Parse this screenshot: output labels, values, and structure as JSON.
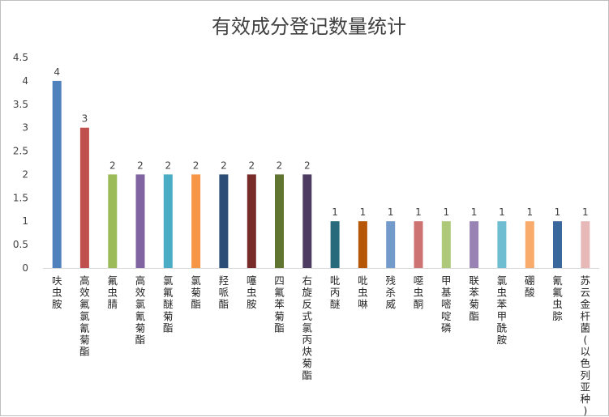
{
  "chart_data": {
    "type": "bar",
    "title": "有效成分登记数量统计",
    "xlabel": "",
    "ylabel": "",
    "ylim": [
      0,
      4.5
    ],
    "yticks": [
      "0",
      "0.5",
      "1",
      "1.5",
      "2",
      "2.5",
      "3",
      "3.5",
      "4",
      "4.5"
    ],
    "grid": false,
    "legend": "none",
    "categories": [
      "呋虫胺",
      "高效氟氯氰菊酯",
      "氟虫腈",
      "高效氯氰菊酯",
      "氯氟醚菊酯",
      "氯菊酯",
      "羟哌酯",
      "噻虫胺",
      "四氟苯菊酯",
      "右旋反式氯丙炔菊酯",
      "吡丙醚",
      "吡虫啉",
      "残杀威",
      "噁虫酮",
      "甲基嘧啶磷",
      "联苯菊酯",
      "氯虫苯甲酰胺",
      "硼酸",
      "氰氟虫腙",
      "苏云金杆菌(以色列亚种)"
    ],
    "values": [
      4,
      3,
      2,
      2,
      2,
      2,
      2,
      2,
      2,
      2,
      1,
      1,
      1,
      1,
      1,
      1,
      1,
      1,
      1,
      1
    ],
    "data_labels": [
      "4",
      "3",
      "2",
      "2",
      "2",
      "2",
      "2",
      "2",
      "2",
      "2",
      "1",
      "1",
      "1",
      "1",
      "1",
      "1",
      "1",
      "1",
      "1",
      "1"
    ],
    "colors": [
      "#4f81bd",
      "#c0504d",
      "#9bbb59",
      "#8064a2",
      "#4bacc6",
      "#f79646",
      "#2c4d75",
      "#772c2a",
      "#5f7530",
      "#4d3b62",
      "#276a7c",
      "#b65708",
      "#729aca",
      "#cd7371",
      "#afc97a",
      "#9983b5",
      "#6fbdd1",
      "#f9ab6b",
      "#3a679c",
      "#e6b9b8"
    ]
  }
}
